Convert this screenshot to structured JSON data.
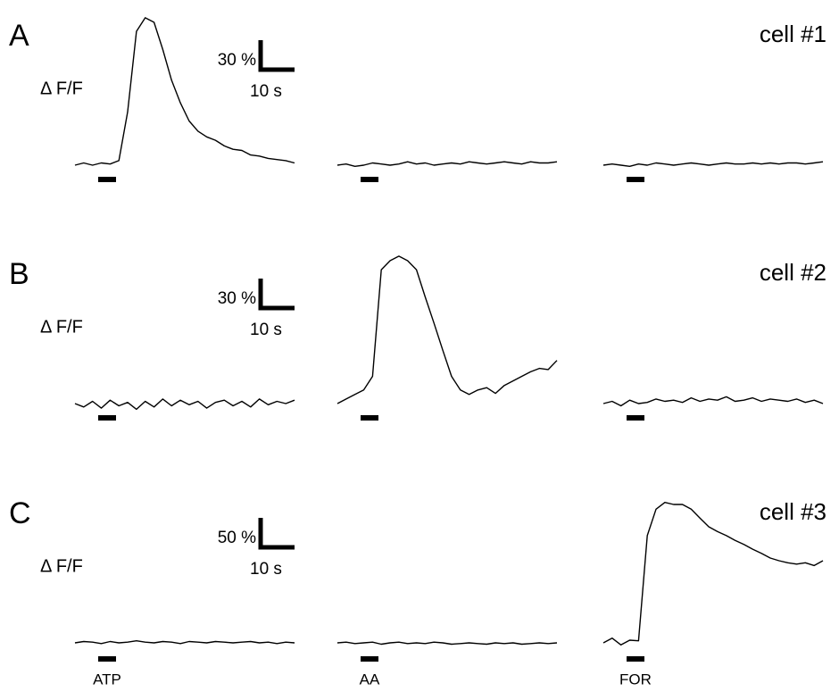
{
  "panels": [
    {
      "label": "A",
      "cell": "cell #1",
      "ylabel": "Δ F/F",
      "scale_y": "30 %",
      "scale_x": "10 s",
      "traces": [
        [
          0,
          2,
          0,
          2,
          1,
          4,
          47,
          118,
          130,
          126,
          102,
          75,
          55,
          39,
          30,
          25,
          22,
          17,
          14,
          13,
          9,
          8,
          6,
          5,
          4,
          2
        ],
        [
          0,
          1,
          -1,
          0,
          2,
          1,
          0,
          1,
          3,
          1,
          2,
          0,
          1,
          2,
          1,
          3,
          2,
          1,
          2,
          3,
          2,
          1,
          3,
          2,
          2,
          3
        ],
        [
          0,
          1,
          0,
          -1,
          1,
          0,
          2,
          1,
          0,
          1,
          2,
          1,
          0,
          1,
          2,
          1,
          1,
          2,
          1,
          2,
          1,
          2,
          2,
          1,
          2,
          3
        ]
      ]
    },
    {
      "label": "B",
      "cell": "cell #2",
      "ylabel": "Δ F/F",
      "scale_y": "30 %",
      "scale_x": "10 s",
      "traces": [
        [
          0,
          -3,
          2,
          -4,
          3,
          -2,
          1,
          -5,
          2,
          -3,
          4,
          -2,
          3,
          -1,
          2,
          -4,
          1,
          3,
          -2,
          2,
          -3,
          4,
          -1,
          2,
          0,
          3
        ],
        [
          0,
          4,
          8,
          12,
          24,
          118,
          126,
          130,
          126,
          118,
          94,
          71,
          47,
          24,
          12,
          8,
          12,
          14,
          9,
          16,
          20,
          24,
          28,
          31,
          30,
          38
        ],
        [
          0,
          2,
          -2,
          3,
          0,
          1,
          4,
          2,
          3,
          1,
          5,
          2,
          4,
          3,
          6,
          2,
          3,
          5,
          2,
          4,
          3,
          2,
          4,
          1,
          3,
          0
        ]
      ]
    },
    {
      "label": "C",
      "cell": "cell #3",
      "ylabel": "Δ F/F",
      "scale_y": "50 %",
      "scale_x": "10 s",
      "traces": [
        [
          0,
          2,
          1,
          -1,
          2,
          0,
          1,
          3,
          1,
          0,
          2,
          1,
          -1,
          2,
          1,
          0,
          2,
          1,
          0,
          1,
          2,
          0,
          1,
          -1,
          1,
          0
        ],
        [
          0,
          1,
          -1,
          0,
          1,
          -2,
          0,
          1,
          -1,
          0,
          -1,
          1,
          0,
          -2,
          -1,
          0,
          -1,
          -2,
          0,
          -1,
          0,
          -2,
          -1,
          0,
          -1,
          0
        ],
        [
          0,
          7,
          -3,
          4,
          3,
          158,
          197,
          207,
          204,
          204,
          197,
          184,
          171,
          164,
          158,
          151,
          145,
          138,
          132,
          125,
          121,
          118,
          116,
          118,
          114,
          121
        ]
      ]
    }
  ],
  "stimuli": [
    "ATP",
    "AA",
    "FOR"
  ]
}
